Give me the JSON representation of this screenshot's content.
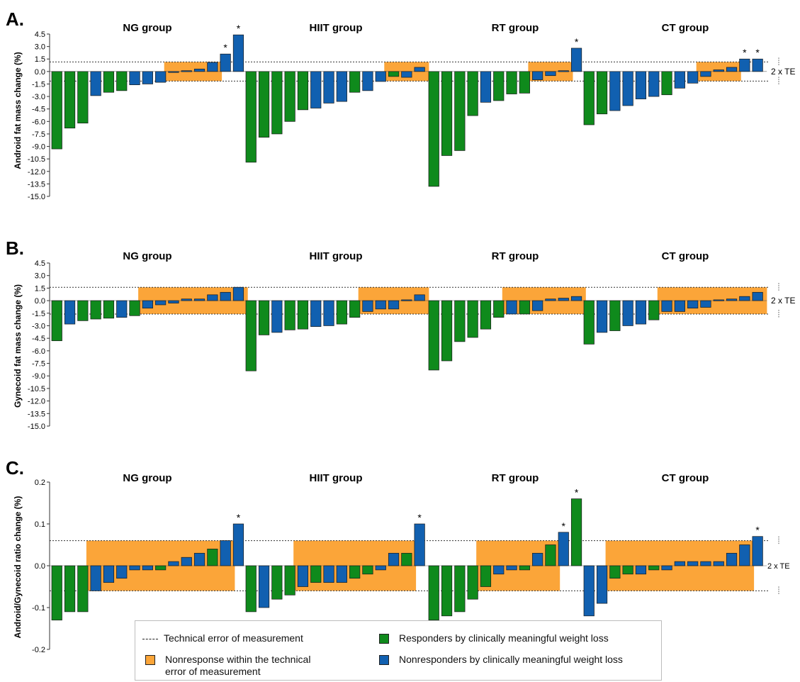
{
  "colors": {
    "responder": "#0f8a1c",
    "nonresponder": "#1160b0",
    "band": "#fba539",
    "axis": "#333333"
  },
  "chart_data": [
    {
      "type": "bar",
      "panel_label": "A.",
      "ylabel": "Android fat mass change (%)",
      "ylim": [
        -15.0,
        4.5
      ],
      "yticks": [
        "4.5",
        "3.0",
        "1.5",
        "0.0",
        "-1.5",
        "-3.0",
        "-4.5",
        "-6.0",
        "-7.5",
        "-9.0",
        "-10.5",
        "-12.0",
        "-13.5",
        "-15.0"
      ],
      "te_limit": 1.15,
      "te_label": "2 x TE",
      "groups": [
        {
          "name": "NG group",
          "values": [
            -9.3,
            -6.8,
            -6.2,
            -2.9,
            -2.5,
            -2.3,
            -1.6,
            -1.5,
            -1.3,
            -0.1,
            0.1,
            0.3,
            1.1,
            2.1,
            4.4
          ],
          "responder": [
            1,
            1,
            1,
            0,
            1,
            1,
            0,
            0,
            0,
            0,
            0,
            0,
            0,
            0,
            0
          ],
          "stars": [
            0,
            0,
            0,
            0,
            0,
            0,
            0,
            0,
            0,
            0,
            0,
            0,
            0,
            1,
            1
          ]
        },
        {
          "name": "HIIT group",
          "values": [
            -10.9,
            -7.9,
            -7.5,
            -6.0,
            -4.6,
            -4.4,
            -3.8,
            -3.6,
            -2.5,
            -2.3,
            -1.2,
            -0.6,
            -0.7,
            0.5
          ],
          "responder": [
            1,
            1,
            1,
            1,
            1,
            0,
            0,
            0,
            1,
            0,
            0,
            1,
            0,
            0
          ],
          "stars": [
            0,
            0,
            0,
            0,
            0,
            0,
            0,
            0,
            0,
            0,
            0,
            0,
            0,
            0
          ]
        },
        {
          "name": "RT group",
          "values": [
            -13.8,
            -10.1,
            -9.5,
            -5.3,
            -3.7,
            -3.5,
            -2.7,
            -2.6,
            -1.0,
            -0.5,
            0.1,
            2.8
          ],
          "responder": [
            1,
            1,
            1,
            1,
            0,
            1,
            1,
            1,
            0,
            0,
            0,
            0
          ],
          "stars": [
            0,
            0,
            0,
            0,
            0,
            0,
            0,
            0,
            0,
            0,
            0,
            1
          ]
        },
        {
          "name": "CT group",
          "values": [
            -6.4,
            -5.1,
            -4.7,
            -4.1,
            -3.3,
            -3.0,
            -2.8,
            -2.0,
            -1.4,
            -0.6,
            0.2,
            0.5,
            1.5,
            1.5
          ],
          "responder": [
            1,
            1,
            0,
            0,
            0,
            0,
            1,
            0,
            0,
            0,
            0,
            0,
            0,
            0
          ],
          "stars": [
            0,
            0,
            0,
            0,
            0,
            0,
            0,
            0,
            0,
            0,
            0,
            0,
            1,
            1
          ]
        }
      ]
    },
    {
      "type": "bar",
      "panel_label": "B.",
      "ylabel": "Gynecoid fat mass change (%)",
      "ylim": [
        -15.0,
        4.5
      ],
      "yticks": [
        "4.5",
        "3.0",
        "1.5",
        "0.0",
        "-1.5",
        "-3.0",
        "-4.5",
        "-6.0",
        "-7.5",
        "-9.0",
        "-10.5",
        "-12.0",
        "-13.5",
        "-15.0"
      ],
      "te_limit": 1.6,
      "te_label": "2 x TE",
      "groups": [
        {
          "name": "NG group",
          "values": [
            -4.8,
            -2.8,
            -2.4,
            -2.2,
            -2.1,
            -2.0,
            -1.8,
            -0.9,
            -0.5,
            -0.3,
            0.2,
            0.2,
            0.7,
            1.0,
            1.6
          ],
          "responder": [
            1,
            0,
            1,
            1,
            1,
            0,
            1,
            0,
            0,
            0,
            0,
            0,
            0,
            0,
            0
          ],
          "stars": [
            0,
            0,
            0,
            0,
            0,
            0,
            0,
            0,
            0,
            0,
            0,
            0,
            0,
            0,
            0
          ]
        },
        {
          "name": "HIIT group",
          "values": [
            -8.4,
            -4.1,
            -3.8,
            -3.5,
            -3.4,
            -3.1,
            -3.0,
            -2.8,
            -2.0,
            -1.3,
            -1.0,
            -1.0,
            0.1,
            0.7
          ],
          "responder": [
            1,
            1,
            0,
            1,
            1,
            0,
            0,
            1,
            1,
            0,
            0,
            0,
            0,
            0
          ],
          "stars": [
            0,
            0,
            0,
            0,
            0,
            0,
            0,
            0,
            0,
            0,
            0,
            0,
            0,
            0
          ]
        },
        {
          "name": "RT group",
          "values": [
            -8.3,
            -7.2,
            -4.9,
            -4.4,
            -3.4,
            -2.0,
            -1.6,
            -1.6,
            -1.2,
            0.2,
            0.3,
            0.5
          ],
          "responder": [
            1,
            1,
            1,
            1,
            1,
            1,
            0,
            1,
            0,
            0,
            0,
            0
          ],
          "stars": [
            0,
            0,
            0,
            0,
            0,
            0,
            0,
            0,
            0,
            0,
            0,
            0
          ]
        },
        {
          "name": "CT group",
          "values": [
            -5.2,
            -3.8,
            -3.6,
            -3.0,
            -2.8,
            -2.3,
            -1.3,
            -1.3,
            -0.9,
            -0.8,
            0.1,
            0.2,
            0.5,
            1.0
          ],
          "responder": [
            1,
            0,
            1,
            0,
            0,
            1,
            0,
            0,
            0,
            0,
            0,
            0,
            0,
            0
          ],
          "stars": [
            0,
            0,
            0,
            0,
            0,
            0,
            0,
            0,
            0,
            0,
            0,
            0,
            0,
            0
          ]
        }
      ]
    },
    {
      "type": "bar",
      "panel_label": "C.",
      "ylabel": "Android/Gynecoid ratio change (%)",
      "ylim": [
        -0.2,
        0.2
      ],
      "yticks": [
        "0.2",
        "0.1",
        "0.0",
        "-0.1",
        "-0.2"
      ],
      "te_limit": 0.06,
      "te_label": "2 x TE",
      "groups": [
        {
          "name": "NG group",
          "values": [
            -0.13,
            -0.11,
            -0.11,
            -0.06,
            -0.04,
            -0.03,
            -0.01,
            -0.01,
            -0.01,
            0.01,
            0.02,
            0.03,
            0.04,
            0.06,
            0.1
          ],
          "responder": [
            1,
            1,
            1,
            0,
            0,
            0,
            0,
            0,
            1,
            0,
            0,
            0,
            1,
            0,
            0
          ],
          "stars": [
            0,
            0,
            0,
            0,
            0,
            0,
            0,
            0,
            0,
            0,
            0,
            0,
            0,
            0,
            1
          ]
        },
        {
          "name": "HIIT group",
          "values": [
            -0.11,
            -0.1,
            -0.08,
            -0.07,
            -0.05,
            -0.04,
            -0.04,
            -0.04,
            -0.03,
            -0.02,
            -0.01,
            0.03,
            0.03,
            0.1
          ],
          "responder": [
            1,
            0,
            1,
            1,
            0,
            1,
            0,
            0,
            1,
            1,
            0,
            0,
            1,
            0
          ],
          "stars": [
            0,
            0,
            0,
            0,
            0,
            0,
            0,
            0,
            0,
            0,
            0,
            0,
            0,
            1
          ]
        },
        {
          "name": "RT group",
          "values": [
            -0.13,
            -0.12,
            -0.11,
            -0.08,
            -0.05,
            -0.02,
            -0.01,
            -0.01,
            0.03,
            0.05,
            0.08,
            0.16
          ],
          "responder": [
            1,
            1,
            1,
            1,
            1,
            0,
            0,
            1,
            0,
            1,
            0,
            1
          ],
          "stars": [
            0,
            0,
            0,
            0,
            0,
            0,
            0,
            0,
            0,
            0,
            1,
            1
          ]
        },
        {
          "name": "CT group",
          "values": [
            -0.12,
            -0.09,
            -0.03,
            -0.02,
            -0.02,
            -0.01,
            -0.01,
            0.01,
            0.01,
            0.01,
            0.01,
            0.03,
            0.05,
            0.07
          ],
          "responder": [
            0,
            0,
            1,
            1,
            0,
            1,
            0,
            0,
            0,
            0,
            0,
            0,
            0,
            0
          ],
          "stars": [
            0,
            0,
            0,
            0,
            0,
            0,
            0,
            0,
            0,
            0,
            0,
            0,
            0,
            1
          ]
        }
      ]
    }
  ],
  "legend": {
    "te_line": "Technical error of measurement",
    "nonresponse_line1": "Nonresponse within the technical",
    "nonresponse_line2": "error of measurement",
    "responders": "Responders by clinically meaningful weight loss",
    "nonresponders": "Nonresponders by clinically meaningful weight loss"
  }
}
